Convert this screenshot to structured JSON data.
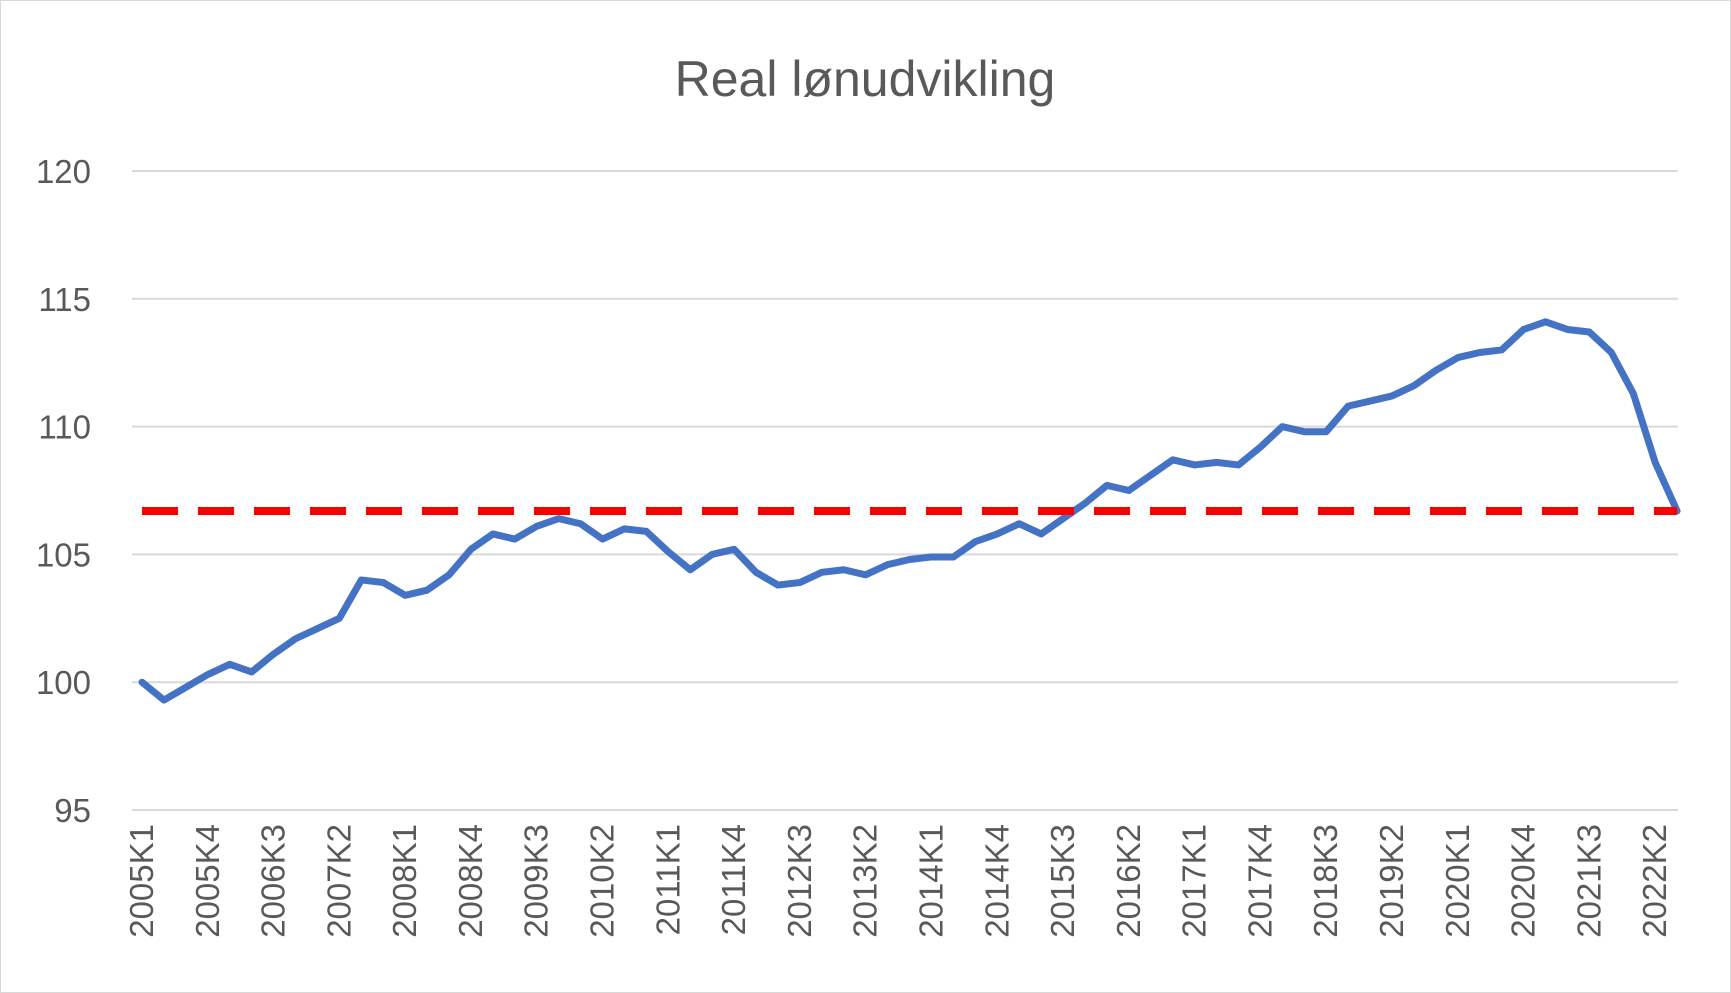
{
  "chart_data": {
    "type": "line",
    "title": "Real lønudvikling",
    "xlabel": "",
    "ylabel": "",
    "ylim": [
      95,
      120
    ],
    "yticks": [
      95,
      100,
      105,
      110,
      115,
      120
    ],
    "grid": true,
    "legend": "none",
    "x": [
      "2005K1",
      "2005K2",
      "2005K3",
      "2005K4",
      "2006K1",
      "2006K2",
      "2006K3",
      "2006K4",
      "2007K1",
      "2007K2",
      "2007K3",
      "2007K4",
      "2008K1",
      "2008K2",
      "2008K3",
      "2008K4",
      "2009K1",
      "2009K2",
      "2009K3",
      "2009K4",
      "2010K1",
      "2010K2",
      "2010K3",
      "2010K4",
      "2011K1",
      "2011K2",
      "2011K3",
      "2011K4",
      "2012K1",
      "2012K2",
      "2012K3",
      "2012K4",
      "2013K1",
      "2013K2",
      "2013K3",
      "2013K4",
      "2014K1",
      "2014K2",
      "2014K3",
      "2014K4",
      "2015K1",
      "2015K2",
      "2015K3",
      "2015K4",
      "2016K1",
      "2016K2",
      "2016K3",
      "2016K4",
      "2017K1",
      "2017K2",
      "2017K3",
      "2017K4",
      "2018K1",
      "2018K2",
      "2018K3",
      "2018K4",
      "2019K1",
      "2019K2",
      "2019K3",
      "2019K4",
      "2020K1",
      "2020K2",
      "2020K3",
      "2020K4",
      "2021K1",
      "2021K2",
      "2021K3",
      "2021K4",
      "2022K1",
      "2022K2",
      "2022K3"
    ],
    "x_tick_labels": [
      "2005K1",
      "2005K4",
      "2006K3",
      "2007K2",
      "2008K1",
      "2008K4",
      "2009K3",
      "2010K2",
      "2011K1",
      "2011K4",
      "2012K3",
      "2013K2",
      "2014K1",
      "2014K4",
      "2015K3",
      "2016K2",
      "2017K1",
      "2017K4",
      "2018K3",
      "2019K2",
      "2020K1",
      "2020K4",
      "2021K3",
      "2022K2"
    ],
    "series": [
      {
        "color": "#4472c4",
        "style": "solid",
        "values": [
          100.0,
          99.3,
          99.8,
          100.3,
          100.7,
          100.4,
          101.1,
          101.7,
          102.1,
          102.5,
          104.0,
          103.9,
          103.4,
          103.6,
          104.2,
          105.2,
          105.8,
          105.6,
          106.1,
          106.4,
          106.2,
          105.6,
          106.0,
          105.9,
          105.1,
          104.4,
          105.0,
          105.2,
          104.3,
          103.8,
          103.9,
          104.3,
          104.4,
          104.2,
          104.6,
          104.8,
          104.9,
          104.9,
          105.5,
          105.8,
          106.2,
          105.8,
          106.4,
          107.0,
          107.7,
          107.5,
          108.1,
          108.7,
          108.5,
          108.6,
          108.5,
          109.2,
          110.0,
          109.8,
          109.8,
          110.8,
          111.0,
          111.2,
          111.6,
          112.2,
          112.7,
          112.9,
          113.0,
          113.8,
          114.1,
          113.8,
          113.7,
          112.9,
          111.3,
          108.6,
          106.7
        ]
      },
      {
        "color": "#ff0000",
        "style": "dashed",
        "values": [
          106.7,
          106.7,
          106.7,
          106.7,
          106.7,
          106.7,
          106.7,
          106.7,
          106.7,
          106.7,
          106.7,
          106.7,
          106.7,
          106.7,
          106.7,
          106.7,
          106.7,
          106.7,
          106.7,
          106.7,
          106.7,
          106.7,
          106.7,
          106.7,
          106.7,
          106.7,
          106.7,
          106.7,
          106.7,
          106.7,
          106.7,
          106.7,
          106.7,
          106.7,
          106.7,
          106.7,
          106.7,
          106.7,
          106.7,
          106.7,
          106.7,
          106.7,
          106.7,
          106.7,
          106.7,
          106.7,
          106.7,
          106.7,
          106.7,
          106.7,
          106.7,
          106.7,
          106.7,
          106.7,
          106.7,
          106.7,
          106.7,
          106.7,
          106.7,
          106.7,
          106.7,
          106.7,
          106.7,
          106.7,
          106.7,
          106.7,
          106.7,
          106.7,
          106.7,
          106.7,
          106.7
        ]
      }
    ]
  }
}
